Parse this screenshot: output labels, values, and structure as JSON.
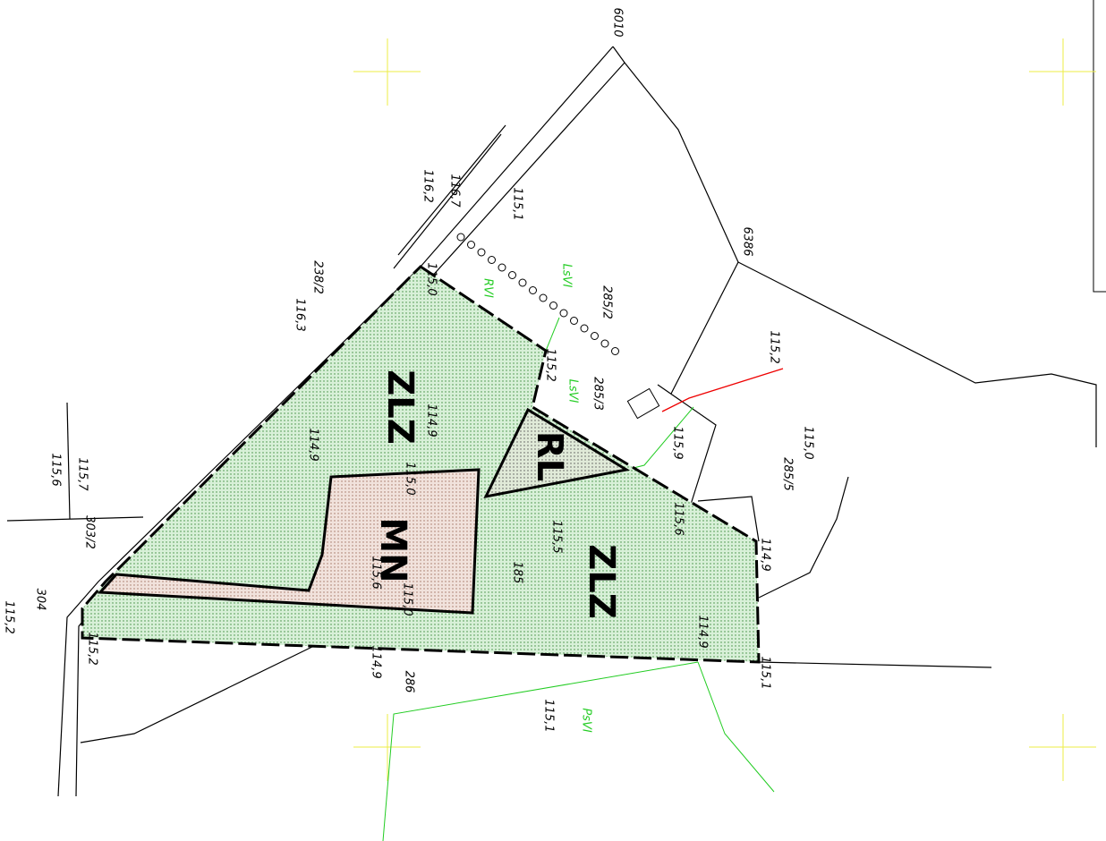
{
  "labels": [
    "6010",
    "115,1",
    "6386",
    "115,2",
    "115,0",
    "285/5",
    "285/2",
    "285/3",
    "LsVI",
    "LsVI",
    "RVI",
    "238/2",
    "116,3",
    "ZLZ",
    "RL",
    "MN",
    "ZLZ",
    "115,5",
    "115,6",
    "115,9",
    "114,9",
    "286",
    "115,1",
    "PsVI",
    "114,9",
    "115,2",
    "304",
    "115,2",
    "303/2",
    "115,7",
    "115,6",
    "115,6",
    "115,0",
    "114,9",
    "115,1",
    "116,2",
    "116,7",
    "115,0",
    "115,2",
    "114,9",
    "114,9",
    "115,0",
    "185"
  ]
}
